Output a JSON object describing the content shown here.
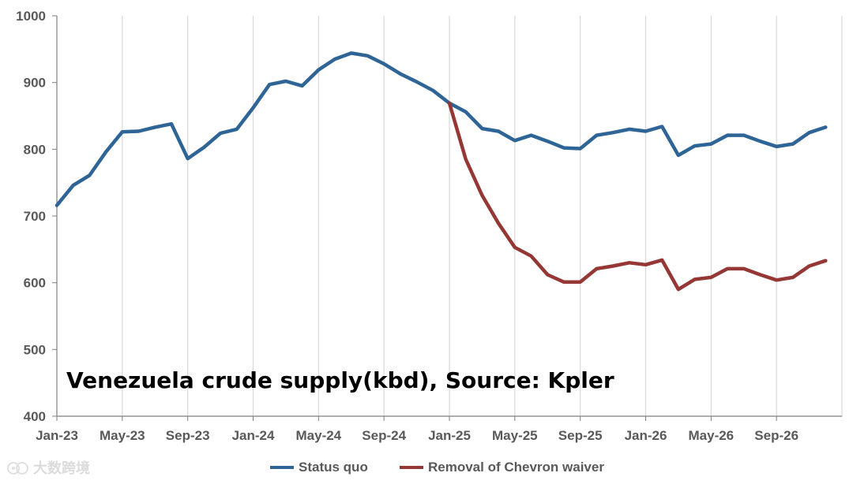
{
  "chart_data": {
    "type": "line",
    "title": "",
    "xlabel": "",
    "ylabel": "",
    "ylim": [
      400,
      1000
    ],
    "yticks": [
      "400",
      "500",
      "600",
      "700",
      "800",
      "900",
      "1000"
    ],
    "xticks": [
      "Jan-23",
      "May-23",
      "Sep-23",
      "Jan-24",
      "May-24",
      "Sep-24",
      "Jan-25",
      "May-25",
      "Sep-25",
      "Jan-26",
      "May-26",
      "Sep-26"
    ],
    "x": [
      "Jan-23",
      "Feb-23",
      "Mar-23",
      "Apr-23",
      "May-23",
      "Jun-23",
      "Jul-23",
      "Aug-23",
      "Sep-23",
      "Oct-23",
      "Nov-23",
      "Dec-23",
      "Jan-24",
      "Feb-24",
      "Mar-24",
      "Apr-24",
      "May-24",
      "Jun-24",
      "Jul-24",
      "Aug-24",
      "Sep-24",
      "Oct-24",
      "Nov-24",
      "Dec-24",
      "Jan-25",
      "Feb-25",
      "Mar-25",
      "Apr-25",
      "May-25",
      "Jun-25",
      "Jul-25",
      "Aug-25",
      "Sep-25",
      "Oct-25",
      "Nov-25",
      "Dec-25",
      "Jan-26",
      "Feb-26",
      "Mar-26",
      "Apr-26",
      "May-26",
      "Jun-26",
      "Jul-26",
      "Aug-26",
      "Sep-26",
      "Oct-26",
      "Nov-26",
      "Dec-26"
    ],
    "grid": "vertical",
    "legend_position": "bottom",
    "series": [
      {
        "name": "Status quo",
        "color": "#2e6496",
        "values": [
          716,
          746,
          761,
          796,
          826,
          827,
          833,
          838,
          786,
          803,
          824,
          830,
          862,
          897,
          902,
          895,
          919,
          935,
          944,
          940,
          928,
          913,
          901,
          888,
          869,
          856,
          831,
          827,
          813,
          821,
          812,
          802,
          801,
          821,
          825,
          830,
          827,
          834,
          791,
          805,
          808,
          821,
          821,
          812,
          804,
          808,
          825,
          833
        ]
      },
      {
        "name": "Removal of Chevron waiver",
        "color": "#953735",
        "values": [
          null,
          null,
          null,
          null,
          null,
          null,
          null,
          null,
          null,
          null,
          null,
          null,
          null,
          null,
          null,
          null,
          null,
          null,
          null,
          null,
          null,
          null,
          null,
          null,
          869,
          785,
          731,
          689,
          653,
          640,
          612,
          601,
          601,
          621,
          625,
          630,
          627,
          634,
          590,
          605,
          608,
          621,
          621,
          612,
          604,
          608,
          625,
          633
        ]
      }
    ],
    "annotation": "Venezuela crude supply(kbd), Source: Kpler"
  },
  "watermark_text": "大数跨境"
}
